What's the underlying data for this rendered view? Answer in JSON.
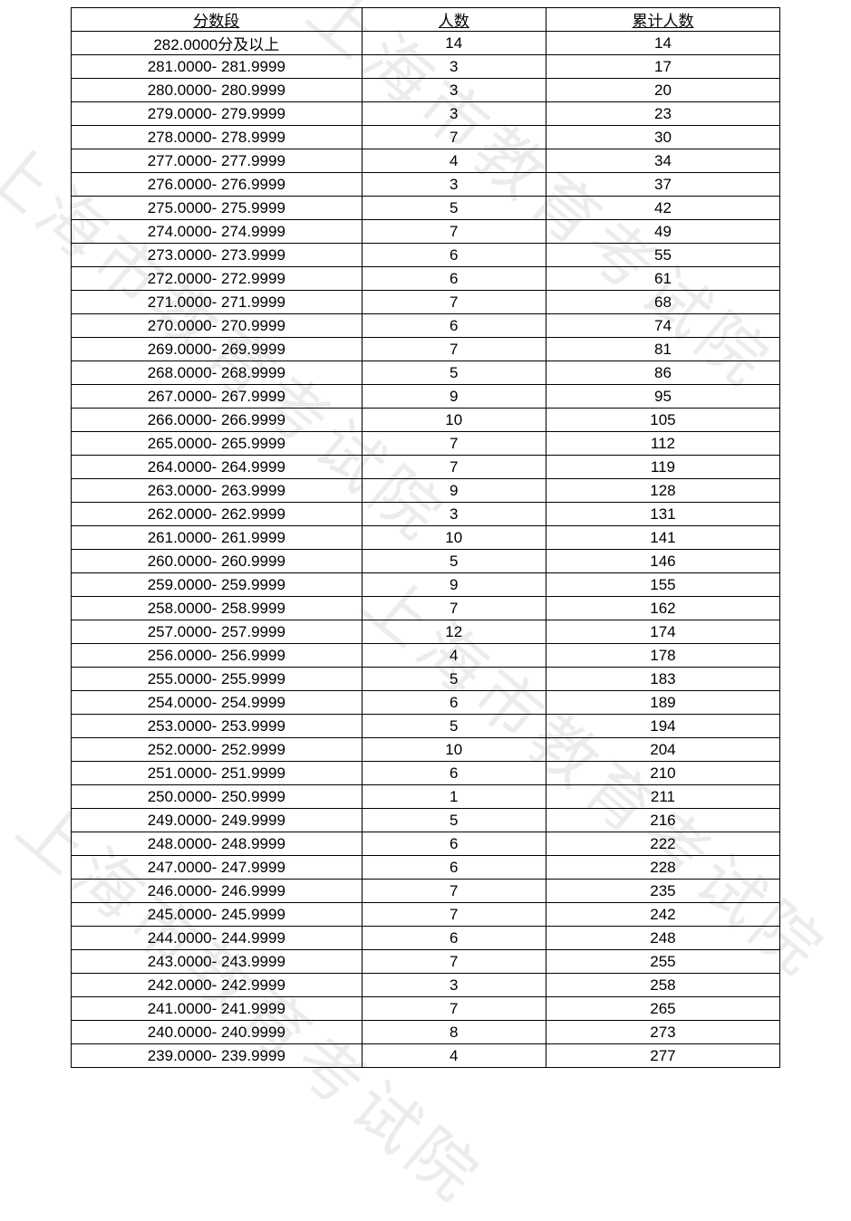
{
  "watermarks": {
    "text": "上海市教育考试院"
  },
  "table": {
    "type": "table",
    "background_color": "#ffffff",
    "border_color": "#000000",
    "text_color": "#000000",
    "font_size": 17,
    "columns": [
      "分数段",
      "人数",
      "累计人数"
    ],
    "col_widths_pct": [
      41,
      26,
      33
    ],
    "rows": [
      [
        "282.0000分及以上",
        "14",
        "14"
      ],
      [
        "281.0000- 281.9999",
        "3",
        "17"
      ],
      [
        "280.0000- 280.9999",
        "3",
        "20"
      ],
      [
        "279.0000- 279.9999",
        "3",
        "23"
      ],
      [
        "278.0000- 278.9999",
        "7",
        "30"
      ],
      [
        "277.0000- 277.9999",
        "4",
        "34"
      ],
      [
        "276.0000- 276.9999",
        "3",
        "37"
      ],
      [
        "275.0000- 275.9999",
        "5",
        "42"
      ],
      [
        "274.0000- 274.9999",
        "7",
        "49"
      ],
      [
        "273.0000- 273.9999",
        "6",
        "55"
      ],
      [
        "272.0000- 272.9999",
        "6",
        "61"
      ],
      [
        "271.0000- 271.9999",
        "7",
        "68"
      ],
      [
        "270.0000- 270.9999",
        "6",
        "74"
      ],
      [
        "269.0000- 269.9999",
        "7",
        "81"
      ],
      [
        "268.0000- 268.9999",
        "5",
        "86"
      ],
      [
        "267.0000- 267.9999",
        "9",
        "95"
      ],
      [
        "266.0000- 266.9999",
        "10",
        "105"
      ],
      [
        "265.0000- 265.9999",
        "7",
        "112"
      ],
      [
        "264.0000- 264.9999",
        "7",
        "119"
      ],
      [
        "263.0000- 263.9999",
        "9",
        "128"
      ],
      [
        "262.0000- 262.9999",
        "3",
        "131"
      ],
      [
        "261.0000- 261.9999",
        "10",
        "141"
      ],
      [
        "260.0000- 260.9999",
        "5",
        "146"
      ],
      [
        "259.0000- 259.9999",
        "9",
        "155"
      ],
      [
        "258.0000- 258.9999",
        "7",
        "162"
      ],
      [
        "257.0000- 257.9999",
        "12",
        "174"
      ],
      [
        "256.0000- 256.9999",
        "4",
        "178"
      ],
      [
        "255.0000- 255.9999",
        "5",
        "183"
      ],
      [
        "254.0000- 254.9999",
        "6",
        "189"
      ],
      [
        "253.0000- 253.9999",
        "5",
        "194"
      ],
      [
        "252.0000- 252.9999",
        "10",
        "204"
      ],
      [
        "251.0000- 251.9999",
        "6",
        "210"
      ],
      [
        "250.0000- 250.9999",
        "1",
        "211"
      ],
      [
        "249.0000- 249.9999",
        "5",
        "216"
      ],
      [
        "248.0000- 248.9999",
        "6",
        "222"
      ],
      [
        "247.0000- 247.9999",
        "6",
        "228"
      ],
      [
        "246.0000- 246.9999",
        "7",
        "235"
      ],
      [
        "245.0000- 245.9999",
        "7",
        "242"
      ],
      [
        "244.0000- 244.9999",
        "6",
        "248"
      ],
      [
        "243.0000- 243.9999",
        "7",
        "255"
      ],
      [
        "242.0000- 242.9999",
        "3",
        "258"
      ],
      [
        "241.0000- 241.9999",
        "7",
        "265"
      ],
      [
        "240.0000- 240.9999",
        "8",
        "273"
      ],
      [
        "239.0000- 239.9999",
        "4",
        "277"
      ]
    ]
  }
}
